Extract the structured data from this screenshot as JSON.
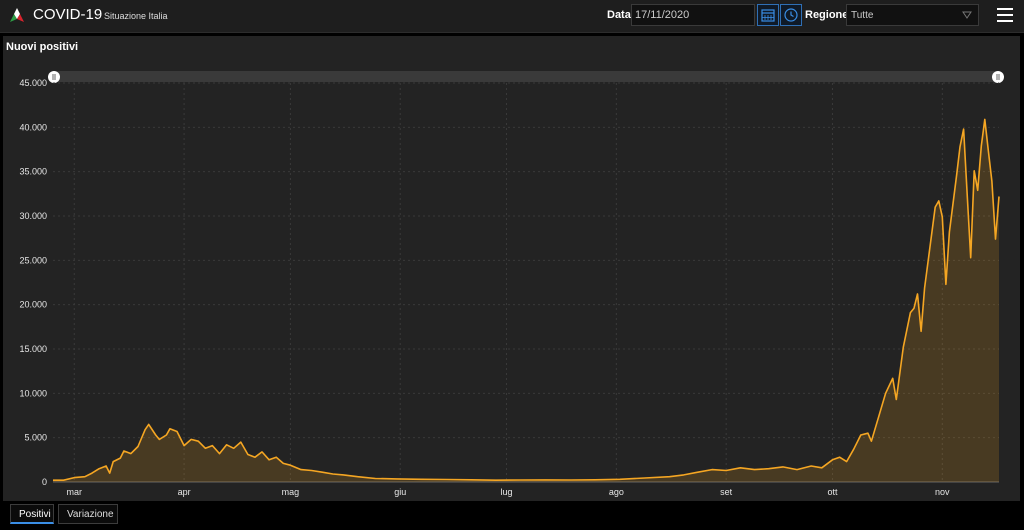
{
  "header": {
    "app_title": "COVID-19",
    "app_subtitle": "Situazione Italia",
    "date_label": "Data",
    "date_value": "17/11/2020",
    "region_label": "Regione",
    "region_value": "Tutte"
  },
  "panel": {
    "title": "Nuovi positivi"
  },
  "tabs": [
    {
      "label": "Positivi",
      "active": true
    },
    {
      "label": "Variazione",
      "active": false
    }
  ],
  "colors": {
    "line": "#f5a623",
    "accent": "#3a8ee6"
  },
  "chart_data": {
    "type": "area",
    "title": "",
    "xlabel": "",
    "ylabel": "",
    "x_start": "2020-02-24",
    "x_end": "2020-11-17",
    "ylim": [
      0,
      45000
    ],
    "y_ticks": [
      "0",
      "5.000",
      "10.000",
      "15.000",
      "20.000",
      "25.000",
      "30.000",
      "35.000",
      "40.000",
      "45.000"
    ],
    "x_ticks": [
      {
        "date": "2020-03-01",
        "label": "mar"
      },
      {
        "date": "2020-04-01",
        "label": "apr"
      },
      {
        "date": "2020-05-01",
        "label": "mag"
      },
      {
        "date": "2020-06-01",
        "label": "giu"
      },
      {
        "date": "2020-07-01",
        "label": "lug"
      },
      {
        "date": "2020-08-01",
        "label": "ago"
      },
      {
        "date": "2020-09-01",
        "label": "set"
      },
      {
        "date": "2020-10-01",
        "label": "ott"
      },
      {
        "date": "2020-11-01",
        "label": "nov"
      }
    ],
    "grid": true,
    "series": [
      {
        "points": [
          [
            "2020-02-24",
            200
          ],
          [
            "2020-02-27",
            200
          ],
          [
            "2020-03-01",
            500
          ],
          [
            "2020-03-04",
            600
          ],
          [
            "2020-03-06",
            1000
          ],
          [
            "2020-03-08",
            1500
          ],
          [
            "2020-03-10",
            1800
          ],
          [
            "2020-03-11",
            1000
          ],
          [
            "2020-03-12",
            2300
          ],
          [
            "2020-03-14",
            2700
          ],
          [
            "2020-03-15",
            3500
          ],
          [
            "2020-03-17",
            3200
          ],
          [
            "2020-03-19",
            4000
          ],
          [
            "2020-03-21",
            5900
          ],
          [
            "2020-03-22",
            6500
          ],
          [
            "2020-03-24",
            5300
          ],
          [
            "2020-03-25",
            4800
          ],
          [
            "2020-03-27",
            5300
          ],
          [
            "2020-03-28",
            6000
          ],
          [
            "2020-03-30",
            5700
          ],
          [
            "2020-04-01",
            4100
          ],
          [
            "2020-04-03",
            4800
          ],
          [
            "2020-04-05",
            4600
          ],
          [
            "2020-04-07",
            3800
          ],
          [
            "2020-04-09",
            4100
          ],
          [
            "2020-04-11",
            3200
          ],
          [
            "2020-04-13",
            4200
          ],
          [
            "2020-04-15",
            3800
          ],
          [
            "2020-04-17",
            4500
          ],
          [
            "2020-04-19",
            3100
          ],
          [
            "2020-04-21",
            2800
          ],
          [
            "2020-04-23",
            3400
          ],
          [
            "2020-04-25",
            2500
          ],
          [
            "2020-04-27",
            2800
          ],
          [
            "2020-04-29",
            2100
          ],
          [
            "2020-05-01",
            1900
          ],
          [
            "2020-05-04",
            1400
          ],
          [
            "2020-05-07",
            1300
          ],
          [
            "2020-05-10",
            1100
          ],
          [
            "2020-05-13",
            900
          ],
          [
            "2020-05-16",
            800
          ],
          [
            "2020-05-20",
            600
          ],
          [
            "2020-05-25",
            400
          ],
          [
            "2020-05-31",
            350
          ],
          [
            "2020-06-07",
            300
          ],
          [
            "2020-06-14",
            280
          ],
          [
            "2020-06-21",
            250
          ],
          [
            "2020-06-28",
            200
          ],
          [
            "2020-07-05",
            220
          ],
          [
            "2020-07-12",
            240
          ],
          [
            "2020-07-19",
            230
          ],
          [
            "2020-07-26",
            250
          ],
          [
            "2020-08-02",
            300
          ],
          [
            "2020-08-09",
            450
          ],
          [
            "2020-08-16",
            600
          ],
          [
            "2020-08-20",
            800
          ],
          [
            "2020-08-24",
            1100
          ],
          [
            "2020-08-28",
            1400
          ],
          [
            "2020-09-01",
            1300
          ],
          [
            "2020-09-05",
            1600
          ],
          [
            "2020-09-09",
            1400
          ],
          [
            "2020-09-13",
            1500
          ],
          [
            "2020-09-17",
            1700
          ],
          [
            "2020-09-21",
            1400
          ],
          [
            "2020-09-25",
            1800
          ],
          [
            "2020-09-28",
            1600
          ],
          [
            "2020-10-01",
            2500
          ],
          [
            "2020-10-03",
            2800
          ],
          [
            "2020-10-05",
            2300
          ],
          [
            "2020-10-07",
            3700
          ],
          [
            "2020-10-09",
            5300
          ],
          [
            "2020-10-11",
            5500
          ],
          [
            "2020-10-12",
            4600
          ],
          [
            "2020-10-14",
            7300
          ],
          [
            "2020-10-16",
            10000
          ],
          [
            "2020-10-18",
            11700
          ],
          [
            "2020-10-19",
            9300
          ],
          [
            "2020-10-21",
            15200
          ],
          [
            "2020-10-23",
            19100
          ],
          [
            "2020-10-24",
            19600
          ],
          [
            "2020-10-25",
            21200
          ],
          [
            "2020-10-26",
            17000
          ],
          [
            "2020-10-27",
            21900
          ],
          [
            "2020-10-28",
            24900
          ],
          [
            "2020-10-30",
            31000
          ],
          [
            "2020-10-31",
            31700
          ],
          [
            "2020-11-01",
            29900
          ],
          [
            "2020-11-02",
            22300
          ],
          [
            "2020-11-03",
            28200
          ],
          [
            "2020-11-05",
            34500
          ],
          [
            "2020-11-06",
            37800
          ],
          [
            "2020-11-07",
            39800
          ],
          [
            "2020-11-08",
            32600
          ],
          [
            "2020-11-09",
            25300
          ],
          [
            "2020-11-10",
            35100
          ],
          [
            "2020-11-11",
            32900
          ],
          [
            "2020-11-12",
            37900
          ],
          [
            "2020-11-13",
            40900
          ],
          [
            "2020-11-14",
            37300
          ],
          [
            "2020-11-15",
            33900
          ],
          [
            "2020-11-16",
            27400
          ],
          [
            "2020-11-17",
            32200
          ]
        ]
      }
    ]
  }
}
